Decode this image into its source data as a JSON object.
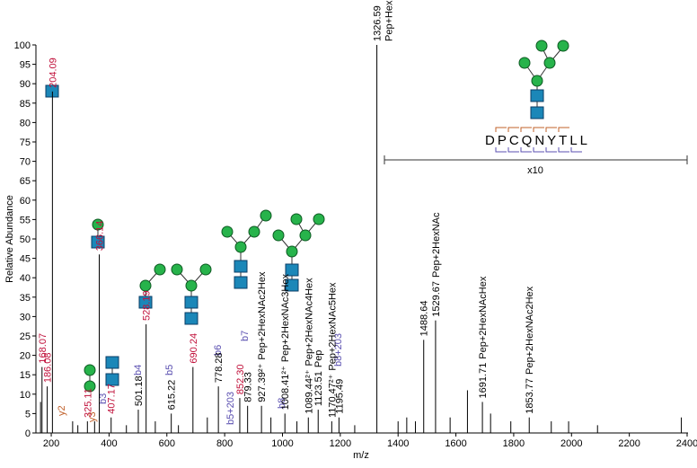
{
  "chart_data": {
    "type": "stem",
    "x_label": "m/z",
    "y_label": "Relative Abundance",
    "xlim": [
      147,
      2400
    ],
    "ylim": [
      0,
      100
    ],
    "xticks": [
      200,
      400,
      600,
      800,
      1000,
      1200,
      1400,
      1600,
      1800,
      2000,
      2200,
      2400
    ],
    "yticks": [
      0,
      5,
      10,
      15,
      20,
      25,
      30,
      35,
      40,
      45,
      50,
      55,
      60,
      65,
      70,
      75,
      80,
      85,
      90,
      95,
      100
    ],
    "color": "#000000",
    "x": [
      168.07,
      186.08,
      204.09,
      325.11,
      366.14,
      407.17,
      501.18,
      528.19,
      615.22,
      690.24,
      778.28,
      852.3,
      879.33,
      927.39,
      1008.41,
      1089.44,
      1123.51,
      1170.47,
      1195.49,
      1326.59,
      1488.64,
      1529.67,
      1691.71,
      1853.77,
      163,
      274,
      292,
      350,
      460,
      560,
      640,
      740,
      960,
      1050,
      1250,
      1400,
      1430,
      1460,
      1580,
      1640,
      1720,
      1790,
      1930,
      1990,
      2090,
      2380
    ],
    "values": [
      17,
      12,
      88,
      3,
      46,
      4,
      6,
      28,
      5,
      17,
      12,
      9,
      7,
      7,
      5,
      4,
      6,
      3,
      4,
      100,
      24,
      29,
      8,
      4,
      8,
      3,
      2,
      3,
      2,
      3,
      2,
      4,
      4,
      3,
      2,
      3,
      4,
      3,
      4,
      11,
      5,
      3,
      3,
      3,
      2,
      4
    ],
    "peak_labels": [
      "168.07",
      "186.08",
      "204.09",
      "325.11",
      "366.14",
      "407.17",
      "501.18",
      "528.19",
      "615.22",
      "690.24",
      "778.28",
      "852.30",
      "879.33",
      "927.39²⁺",
      "1008.41²⁺",
      "1089.44²⁺",
      "1123.51",
      "1170.47²⁺",
      "1195.49",
      "1326.59",
      "1488.64",
      "1529.67",
      "1691.71",
      "1853.77",
      null,
      null,
      null,
      null,
      null,
      null,
      null,
      null,
      null,
      null,
      null,
      null,
      null,
      null,
      null,
      null,
      null,
      null,
      null,
      null,
      null,
      null
    ],
    "peak_notes": [
      null,
      null,
      null,
      null,
      null,
      null,
      null,
      null,
      null,
      null,
      null,
      null,
      null,
      "Pep+2HexNAc2Hex",
      "Pep+2HexNAc3Hex",
      "Pep+2HexNAc4Hex",
      "Pep",
      "Pep+2HexNAc5Hex",
      null,
      "Pep+HexNAc",
      null,
      "Pep+2HexNAc",
      "Pep+2HexNAcHex",
      "Pep+2HexNAc2Hex",
      null,
      null,
      null,
      null,
      null,
      null,
      null,
      null,
      null,
      null,
      null,
      null,
      null,
      null,
      null,
      null,
      null,
      null,
      null,
      null,
      null,
      null
    ],
    "peak_colors": [
      "#c0103a",
      "#c0103a",
      "#c0103a",
      "#c0103a",
      "#c0103a",
      "#c0103a",
      "#000000",
      "#c0103a",
      "#000000",
      "#c0103a",
      "#000000",
      "#c0103a",
      "#000000",
      "#000000",
      "#000000",
      "#000000",
      "#000000",
      "#000000",
      "#000000",
      "#000000",
      "#000000",
      "#000000",
      "#000000",
      "#000000",
      "#000000",
      "#000000",
      "#000000",
      "#000000",
      "#000000",
      "#000000",
      "#000000",
      "#000000",
      "#000000",
      "#000000",
      "#000000",
      "#000000",
      "#000000",
      "#000000",
      "#000000",
      "#000000",
      "#000000",
      "#000000",
      "#000000",
      "#000000",
      "#000000",
      "#000000"
    ],
    "annotations": {
      "y2": "y2",
      "y3": "y3",
      "b3": "b3",
      "b4": "b4",
      "b5": "b5",
      "b6": "b6",
      "b7": "b7",
      "b8": "b8",
      "b5_203": "b5+203",
      "b8_203": "b8+203",
      "zoom": "x10",
      "peptide": "DPCQNYTLL"
    }
  }
}
